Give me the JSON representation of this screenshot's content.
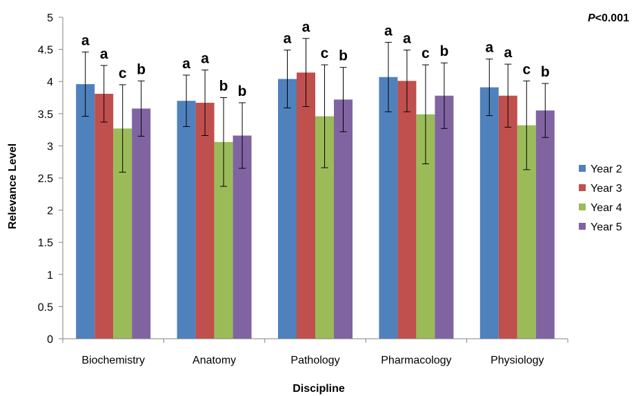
{
  "chart_data": {
    "type": "bar",
    "title": "",
    "xlabel": "Discipline",
    "ylabel": "Relevance Level",
    "ylim": [
      0,
      5
    ],
    "yticks": [
      "0",
      "0.5",
      "1",
      "1.5",
      "2",
      "2.5",
      "3",
      "3.5",
      "4",
      "4.5",
      "5"
    ],
    "categories": [
      "Biochemistry",
      "Anatomy",
      "Pathology",
      "Pharmacology",
      "Physiology"
    ],
    "annotation": {
      "prefix": "P",
      "text": "<0.001"
    },
    "legend_position": "right",
    "series": [
      {
        "name": "Year 2",
        "color": "#4f81bd",
        "values": [
          3.96,
          3.7,
          4.04,
          4.07,
          3.91
        ],
        "errors": [
          0.5,
          0.4,
          0.45,
          0.54,
          0.44
        ],
        "letters": [
          "a",
          "a",
          "a",
          "a",
          "a"
        ]
      },
      {
        "name": "Year 3",
        "color": "#c0504d",
        "values": [
          3.81,
          3.67,
          4.14,
          4.01,
          3.78
        ],
        "errors": [
          0.44,
          0.51,
          0.53,
          0.48,
          0.49
        ],
        "letters": [
          "a",
          "a",
          "a",
          "a",
          "a"
        ]
      },
      {
        "name": "Year 4",
        "color": "#9bbb59",
        "values": [
          3.27,
          3.06,
          3.46,
          3.49,
          3.32
        ],
        "errors": [
          0.68,
          0.69,
          0.8,
          0.77,
          0.69
        ],
        "letters": [
          "c",
          "b",
          "c",
          "c",
          "c"
        ]
      },
      {
        "name": "Year 5",
        "color": "#8064a2",
        "values": [
          3.58,
          3.16,
          3.72,
          3.78,
          3.55
        ],
        "errors": [
          0.43,
          0.51,
          0.5,
          0.51,
          0.42
        ],
        "letters": [
          "b",
          "b",
          "b",
          "b",
          "b"
        ]
      }
    ]
  }
}
